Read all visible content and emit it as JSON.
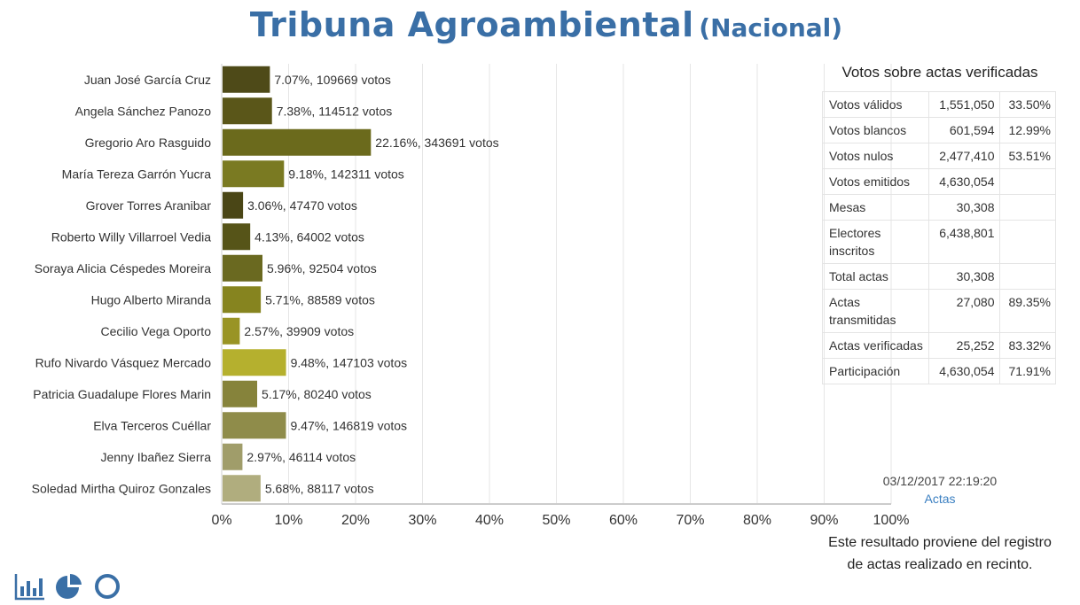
{
  "header": {
    "title": "Tribuna Agroambiental",
    "subtitle": "(Nacional)"
  },
  "chart_data": {
    "type": "bar",
    "orientation": "horizontal",
    "title": "Tribuna Agroambiental (Nacional)",
    "xlabel": "",
    "ylabel": "",
    "xlim": [
      0,
      100
    ],
    "x_ticks": [
      "0%",
      "10%",
      "20%",
      "30%",
      "40%",
      "50%",
      "60%",
      "70%",
      "80%",
      "90%",
      "100%"
    ],
    "grid": true,
    "categories": [
      "Juan José García Cruz",
      "Angela Sánchez Panozo",
      "Gregorio Aro Rasguido",
      "María Tereza Garrón Yucra",
      "Grover Torres Aranibar",
      "Roberto Willy Villarroel Vedia",
      "Soraya Alicia Céspedes Moreira",
      "Hugo Alberto Miranda",
      "Cecilio Vega Oporto",
      "Rufo Nivardo Vásquez Mercado",
      "Patricia Guadalupe Flores Marin",
      "Elva Terceros Cuéllar",
      "Jenny Ibañez Sierra",
      "Soledad Mirtha Quiroz Gonzales"
    ],
    "values": [
      7.07,
      7.38,
      22.16,
      9.18,
      3.06,
      4.13,
      5.96,
      5.71,
      2.57,
      9.48,
      5.17,
      9.47,
      2.97,
      5.68
    ],
    "votes": [
      109669,
      114512,
      343691,
      142311,
      47470,
      64002,
      92504,
      88589,
      39909,
      147103,
      80240,
      146819,
      46114,
      88117
    ],
    "data_labels": [
      "7.07%, 109669 votos",
      "7.38%, 114512 votos",
      "22.16%, 343691 votos",
      "9.18%, 142311 votos",
      "3.06%, 47470 votos",
      "4.13%, 64002 votos",
      "5.96%, 92504 votos",
      "5.71%, 88589 votos",
      "2.57%, 39909 votos",
      "9.48%, 147103 votos",
      "5.17%, 80240 votos",
      "9.47%, 146819 votos",
      "2.97%, 46114 votos",
      "5.68%, 88117 votos"
    ],
    "colors": [
      "#4e4a18",
      "#5a5619",
      "#6b6a1c",
      "#7a7a22",
      "#4a4616",
      "#565418",
      "#6a6920",
      "#86841f",
      "#999425",
      "#b5b02e",
      "#86833b",
      "#8f8c4a",
      "#a09d6a",
      "#b0ad7e"
    ]
  },
  "stats": {
    "title": "Votos sobre actas verificadas",
    "rows": [
      {
        "label": "Votos válidos",
        "value": "1,551,050",
        "pct": "33.50%"
      },
      {
        "label": "Votos blancos",
        "value": "601,594",
        "pct": "12.99%"
      },
      {
        "label": "Votos nulos",
        "value": "2,477,410",
        "pct": "53.51%"
      },
      {
        "label": "Votos emitidos",
        "value": "4,630,054",
        "pct": ""
      },
      {
        "label": "Mesas",
        "value": "30,308",
        "pct": ""
      },
      {
        "label": "Electores inscritos",
        "value": "6,438,801",
        "pct": ""
      },
      {
        "label": "Total actas",
        "value": "30,308",
        "pct": ""
      },
      {
        "label": "Actas transmitidas",
        "value": "27,080",
        "pct": "89.35%"
      },
      {
        "label": "Actas verificadas",
        "value": "25,252",
        "pct": "83.32%"
      },
      {
        "label": "Participación",
        "value": "4,630,054",
        "pct": "71.91%"
      }
    ]
  },
  "footer": {
    "timestamp": "03/12/2017 22:19:20",
    "link": "Actas",
    "note": "Este resultado proviene del registro de actas realizado en recinto."
  },
  "icons": [
    "bar-chart-icon",
    "pie-chart-icon",
    "donut-chart-icon"
  ],
  "accent_color": "#3a6fa6"
}
